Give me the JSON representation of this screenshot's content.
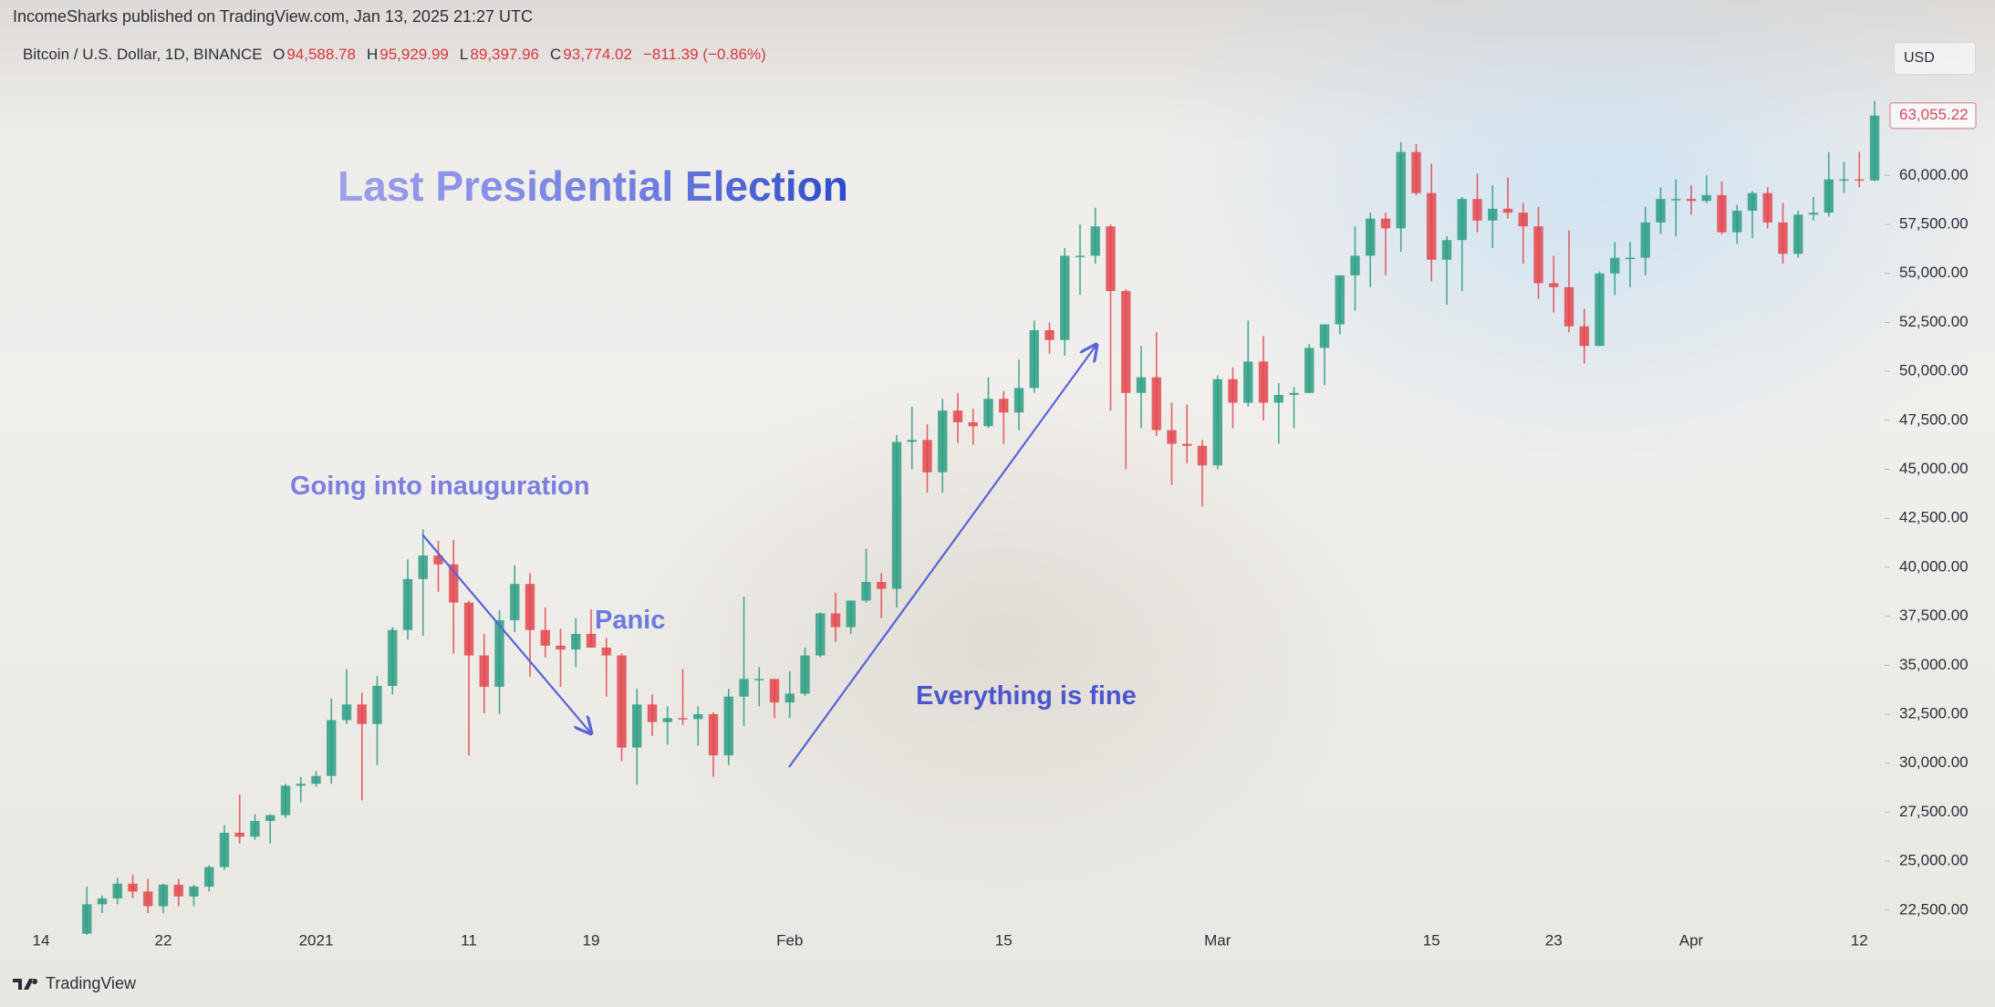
{
  "header": {
    "published": "IncomeSharks published on TradingView.com, Jan 13, 2025 21:27 UTC",
    "symbol": "Bitcoin / U.S. Dollar, 1D, BINANCE",
    "ohlc": [
      {
        "key": "O",
        "value": "94,588.78"
      },
      {
        "key": "H",
        "value": "95,929.99"
      },
      {
        "key": "L",
        "value": "89,397.96"
      },
      {
        "key": "C",
        "value": "93,774.02"
      }
    ],
    "change": "−811.39 (−0.86%)",
    "currency": "USD",
    "brand": "TradingView"
  },
  "chart_data": {
    "type": "candlestick",
    "annotations": [
      "Last Presidential Election",
      "Going into inauguration",
      "Panic",
      "Everything is fine"
    ],
    "up_color": "#2b9d84",
    "down_color": "#e3474d",
    "categories": [
      "14",
      null,
      null,
      null,
      null,
      null,
      null,
      null,
      "22",
      null,
      null,
      null,
      null,
      null,
      null,
      null,
      null,
      null,
      "2021",
      null,
      null,
      null,
      null,
      null,
      null,
      null,
      null,
      null,
      "11",
      null,
      null,
      null,
      null,
      null,
      null,
      null,
      "19",
      null,
      null,
      null,
      null,
      null,
      null,
      null,
      null,
      null,
      null,
      null,
      null,
      "Feb",
      null,
      null,
      null,
      null,
      null,
      null,
      null,
      null,
      null,
      null,
      null,
      null,
      null,
      "15",
      null,
      null,
      null,
      null,
      null,
      null,
      null,
      null,
      null,
      null,
      null,
      null,
      null,
      "Mar",
      null,
      null,
      null,
      null,
      null,
      null,
      null,
      null,
      null,
      null,
      null,
      null,
      null,
      "15",
      null,
      null,
      null,
      null,
      null,
      null,
      null,
      "23",
      null,
      null,
      null,
      null,
      null,
      null,
      null,
      null,
      "Apr",
      null,
      null,
      null,
      null,
      null,
      null,
      null,
      null,
      null,
      null,
      "12",
      null
    ],
    "open": [
      null,
      null,
      null,
      21300,
      22800,
      23100,
      23850,
      23450,
      22700,
      23800,
      23200,
      23700,
      24700,
      26450,
      26250,
      27050,
      27350,
      28850,
      28950,
      29350,
      32200,
      33000,
      32000,
      33950,
      36800,
      39400,
      40600,
      40150,
      38200,
      35500,
      33900,
      37300,
      39150,
      36800,
      36000,
      35800,
      36600,
      35900,
      35500,
      30800,
      33000,
      32100,
      32300,
      32250,
      32500,
      30400,
      33400,
      34300,
      34300,
      33100,
      33550,
      35500,
      37650,
      36950,
      38300,
      39250,
      38900,
      46400,
      46500,
      44850,
      48000,
      47400,
      47200,
      48600,
      47900,
      49150,
      52100,
      51600,
      55900,
      55900,
      57400,
      54100,
      48900,
      49700,
      47000,
      46300,
      46200,
      45200,
      49600,
      48400,
      50500,
      48400,
      48800,
      48900,
      51200,
      52400,
      54900,
      55900,
      57800,
      57300,
      61200,
      59100,
      55700,
      56700,
      58800,
      57700,
      58300,
      58100,
      57400,
      54500,
      54300,
      52300,
      51300,
      55000,
      55800,
      55800,
      57600,
      58800,
      58800,
      58700,
      59000,
      57100,
      58200,
      59100,
      57600,
      56000,
      58000,
      58100,
      59800,
      59800,
      59750
    ],
    "high": [
      null,
      null,
      null,
      23700,
      23250,
      24150,
      24300,
      24100,
      23850,
      24100,
      23800,
      24800,
      26850,
      28400,
      27400,
      27400,
      28950,
      29300,
      29600,
      33300,
      34800,
      33600,
      34450,
      36950,
      40400,
      41950,
      41350,
      41400,
      38300,
      36600,
      37800,
      40100,
      39700,
      37950,
      36850,
      37400,
      37850,
      36400,
      35600,
      33800,
      33500,
      32900,
      34800,
      32900,
      32600,
      33800,
      38500,
      34900,
      34300,
      34700,
      35900,
      37700,
      38700,
      38300,
      40950,
      39700,
      46750,
      48200,
      47300,
      48600,
      48900,
      48100,
      49700,
      49000,
      50600,
      52600,
      52500,
      56300,
      57500,
      58350,
      57500,
      54200,
      51300,
      52000,
      48400,
      48300,
      46500,
      49800,
      50200,
      52600,
      51800,
      49400,
      49200,
      51400,
      52400,
      54900,
      57400,
      58100,
      58100,
      61700,
      61600,
      60600,
      56900,
      58900,
      60100,
      59500,
      59900,
      58600,
      58400,
      55900,
      57200,
      53200,
      55100,
      56600,
      56600,
      58400,
      59400,
      59800,
      59500,
      60000,
      59700,
      58500,
      59200,
      59400,
      58600,
      58200,
      58900,
      61200,
      60700,
      61200,
      63800
    ],
    "low": [
      null,
      null,
      null,
      21250,
      22350,
      22800,
      23100,
      22350,
      22350,
      22700,
      22700,
      23450,
      24550,
      25900,
      26100,
      25900,
      27200,
      28000,
      28800,
      28950,
      32000,
      28100,
      29900,
      33500,
      36300,
      36500,
      38750,
      35600,
      30400,
      32550,
      32500,
      36700,
      34400,
      35400,
      33900,
      34900,
      35900,
      33400,
      30100,
      28900,
      31400,
      30950,
      31950,
      30900,
      29300,
      29900,
      31900,
      32900,
      32300,
      32300,
      33450,
      35400,
      36200,
      36600,
      38200,
      37400,
      37950,
      45000,
      43800,
      43800,
      46350,
      46250,
      47100,
      46300,
      47000,
      48900,
      50900,
      50800,
      53900,
      55500,
      48000,
      45000,
      47100,
      46700,
      44200,
      45300,
      43100,
      45000,
      47100,
      48200,
      47500,
      46300,
      47100,
      48900,
      49300,
      51900,
      53100,
      54300,
      54900,
      56100,
      59000,
      54600,
      53400,
      54100,
      57100,
      56300,
      57800,
      55500,
      53700,
      53000,
      52000,
      50400,
      51300,
      53900,
      54300,
      54900,
      57000,
      56900,
      58000,
      58600,
      57000,
      56500,
      56800,
      57300,
      55500,
      55800,
      57700,
      57900,
      59100,
      59400,
      59700
    ],
    "close": [
      null,
      null,
      null,
      22800,
      23100,
      23850,
      23450,
      22700,
      23800,
      23200,
      23700,
      24700,
      26450,
      26250,
      27050,
      27350,
      28850,
      28950,
      29350,
      32200,
      33000,
      32000,
      33950,
      36800,
      39400,
      40600,
      40150,
      38200,
      35500,
      33900,
      37300,
      39150,
      36800,
      36000,
      35800,
      36600,
      35900,
      35500,
      30800,
      33000,
      32100,
      32300,
      32250,
      32500,
      30400,
      33400,
      34300,
      34300,
      33100,
      33550,
      35500,
      37650,
      36950,
      38300,
      39250,
      38900,
      46400,
      46500,
      44850,
      48000,
      47400,
      47200,
      48600,
      47900,
      49150,
      52100,
      51600,
      55900,
      55900,
      57400,
      54100,
      48900,
      49700,
      47000,
      46300,
      46200,
      45200,
      49600,
      48400,
      50500,
      48400,
      48800,
      48900,
      51200,
      52400,
      54900,
      55900,
      57800,
      57300,
      61200,
      59100,
      55700,
      56700,
      58800,
      57700,
      58300,
      58100,
      57400,
      54500,
      54300,
      52300,
      51300,
      55000,
      55800,
      55800,
      57600,
      58800,
      58800,
      58700,
      59000,
      57100,
      58200,
      59100,
      57600,
      56000,
      58000,
      58100,
      59800,
      59800,
      59750,
      63055.22
    ],
    "last_price": {
      "value": 63055.22,
      "label": "63,055.22"
    },
    "ylim": [
      21700,
      67000
    ],
    "yticks": [
      {
        "value": 22500,
        "label": "22,500.00"
      },
      {
        "value": 25000,
        "label": "25,000.00"
      },
      {
        "value": 27500,
        "label": "27,500.00"
      },
      {
        "value": 30000,
        "label": "30,000.00"
      },
      {
        "value": 32500,
        "label": "32,500.00"
      },
      {
        "value": 35000,
        "label": "35,000.00"
      },
      {
        "value": 37500,
        "label": "37,500.00"
      },
      {
        "value": 40000,
        "label": "40,000.00"
      },
      {
        "value": 42500,
        "label": "42,500.00"
      },
      {
        "value": 45000,
        "label": "45,000.00"
      },
      {
        "value": 47500,
        "label": "47,500.00"
      },
      {
        "value": 50000,
        "label": "50,000.00"
      },
      {
        "value": 52500,
        "label": "52,500.00"
      },
      {
        "value": 55000,
        "label": "55,000.00"
      },
      {
        "value": 57500,
        "label": "57,500.00"
      },
      {
        "value": 60000,
        "label": "60,000.00"
      }
    ],
    "grid": false
  }
}
